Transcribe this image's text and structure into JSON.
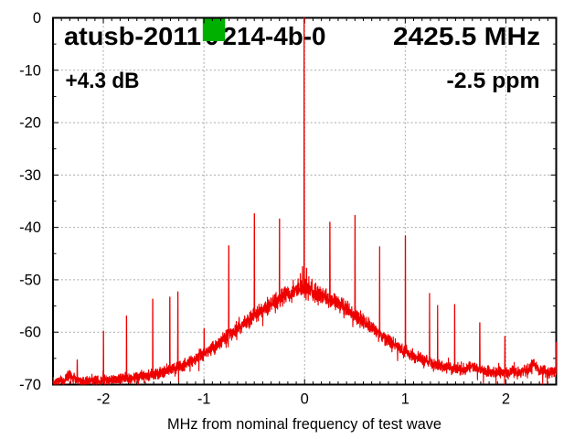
{
  "chart_data": {
    "type": "line",
    "title": "atusb-20110214-4b-0",
    "center_frequency_label": "2425.5 MHz",
    "gain_label": "+4.3 dB",
    "ppm_label": "-2.5 ppm",
    "xlabel": "MHz from nominal frequency of test wave",
    "xlim": [
      -2.5,
      2.5
    ],
    "ylim": [
      -70,
      0
    ],
    "xticks": [
      -2,
      -1,
      0,
      1,
      2
    ],
    "yticks": [
      0,
      -10,
      -20,
      -30,
      -40,
      -50,
      -60,
      -70
    ],
    "x_minor_per_mhz": 12,
    "y_minor_step_db": 5,
    "grid": true,
    "trace_color": "#ee0000",
    "marker_color": "#00b000",
    "marker": {
      "f_start": -1.012,
      "f_end": -0.79,
      "db_start": -0.15,
      "db_end": -4.45
    },
    "noise_floor_db": {
      "left": -69.4,
      "right": -67.6
    },
    "hump": {
      "center_mhz": -0.015,
      "amplitude_db": 16.0,
      "width_mhz": 0.9
    },
    "center_plateau": {
      "extra_db": 0.8,
      "width_mhz": 0.13
    },
    "noise": {
      "base_amp_db": 0.95,
      "center_extra_amp_db": 0.55,
      "dip_chance": 0.02,
      "flick_chance": 0.008
    },
    "sample_step_mhz": 0.0016,
    "bumps": [
      [
        -2.33,
        1.0,
        0.05
      ],
      [
        1.68,
        0.8,
        0.08
      ],
      [
        2.27,
        1.6,
        0.05
      ]
    ],
    "spikes": [
      [
        -2.26,
        -65.3
      ],
      [
        -2.0,
        -59.8
      ],
      [
        -1.77,
        -56.9
      ],
      [
        -1.51,
        -53.7
      ],
      [
        -1.34,
        -53.3
      ],
      [
        -1.26,
        -52.3
      ],
      [
        -1.0,
        -59.3
      ],
      [
        -0.755,
        -43.5
      ],
      [
        -0.5,
        -37.4
      ],
      [
        -0.25,
        -38.4
      ],
      [
        -0.065,
        -49.8
      ],
      [
        -0.042,
        -48.8
      ],
      [
        -0.022,
        -47.5
      ],
      [
        -0.005,
        0.0
      ],
      [
        0.018,
        -47.8
      ],
      [
        0.042,
        -49.4
      ],
      [
        0.065,
        -50.4
      ],
      [
        0.25,
        -39.0
      ],
      [
        0.5,
        -37.7
      ],
      [
        0.745,
        -43.7
      ],
      [
        1.0,
        -41.6
      ],
      [
        1.14,
        -64.3
      ],
      [
        1.24,
        -52.6
      ],
      [
        1.32,
        -54.9
      ],
      [
        1.49,
        -54.7
      ],
      [
        1.74,
        -58.2
      ],
      [
        1.99,
        -60.8
      ],
      [
        2.5,
        -61.9
      ]
    ]
  }
}
